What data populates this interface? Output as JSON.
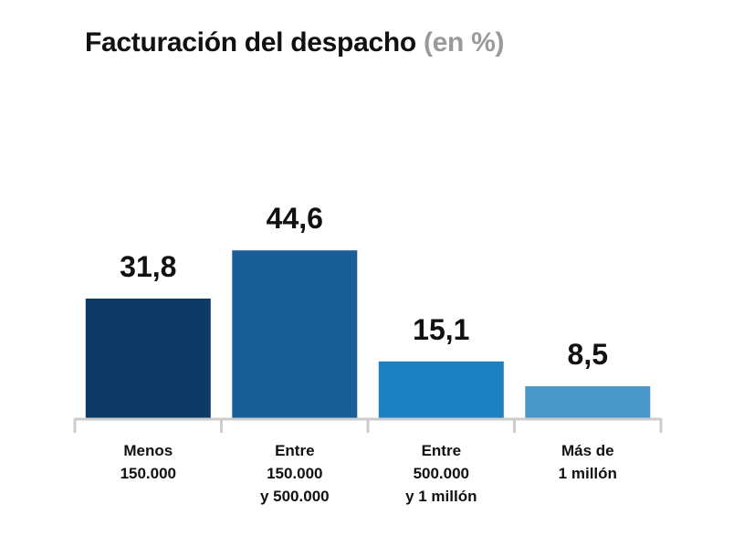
{
  "chart_data": {
    "type": "bar",
    "title": "Facturación del despacho",
    "title_unit": "(en %)",
    "categories": [
      [
        "Menos",
        "150.000"
      ],
      [
        "Entre",
        "150.000",
        "y 500.000"
      ],
      [
        "Entre",
        "500.000",
        "y 1 millón"
      ],
      [
        "Más de",
        "1 millón"
      ]
    ],
    "values": [
      31.8,
      44.6,
      15.1,
      8.5
    ],
    "data_labels": [
      "31,8",
      "44,6",
      "15,1",
      "8,5"
    ],
    "colors": [
      "#0d3b66",
      "#1a5e97",
      "#1c7fbf",
      "#4a98c9"
    ],
    "ylim": [
      0,
      50
    ],
    "grid": false,
    "legend": "none"
  }
}
